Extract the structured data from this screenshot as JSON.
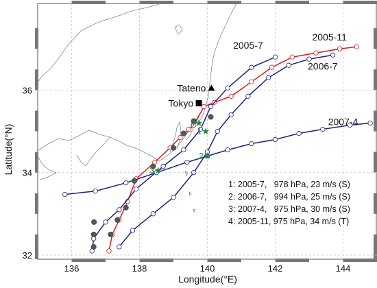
{
  "chart_data": {
    "type": "map",
    "xlabel": "Longitude(°E)",
    "ylabel": "Latitude(°N)",
    "xlim": [
      135,
      145
    ],
    "ylim": [
      31.9,
      38.1
    ],
    "x_ticks": [
      {
        "v": 136,
        "label": "136"
      },
      {
        "v": 138,
        "label": "138"
      },
      {
        "v": 140,
        "label": "140"
      },
      {
        "v": 142,
        "label": "142"
      },
      {
        "v": 144,
        "label": "144"
      }
    ],
    "y_ticks": [
      {
        "v": 32,
        "label": "32"
      },
      {
        "v": 34,
        "label": "34"
      },
      {
        "v": 36,
        "label": "36"
      }
    ],
    "colors": {
      "track_red": "#e0191f",
      "track_blue": "#1c1f86",
      "marker_gray": "#555555",
      "event_green": "#1d8a3a",
      "coast": "#888888",
      "grid": "#c8c8c8"
    },
    "tracks": [
      {
        "label": "2005-11",
        "color": "#e0191f",
        "label_lon": 143.6,
        "label_lat": 37.2,
        "points": [
          [
            137.1,
            32.1
          ],
          [
            137.2,
            32.5
          ],
          [
            137.4,
            32.85
          ],
          [
            137.65,
            33.3
          ],
          [
            137.9,
            33.85
          ],
          [
            138.45,
            34.25
          ],
          [
            138.9,
            34.6
          ],
          [
            139.2,
            34.85
          ],
          [
            139.45,
            35.05
          ],
          [
            139.6,
            35.15
          ],
          [
            139.9,
            35.6
          ],
          [
            140.2,
            35.7
          ],
          [
            140.7,
            35.85
          ],
          [
            141.3,
            36.2
          ],
          [
            141.9,
            36.55
          ],
          [
            142.5,
            36.8
          ],
          [
            143.2,
            36.9
          ],
          [
            143.9,
            37.0
          ],
          [
            144.4,
            37.05
          ]
        ]
      },
      {
        "label": "2005-7",
        "color": "#1c1f86",
        "label_lon": 141.2,
        "label_lat": 37.0,
        "points": [
          [
            136.6,
            32.1
          ],
          [
            136.65,
            32.4
          ],
          [
            137.0,
            32.8
          ],
          [
            137.4,
            33.1
          ],
          [
            137.9,
            33.6
          ],
          [
            138.7,
            34.15
          ],
          [
            139.3,
            34.55
          ],
          [
            139.8,
            35.05
          ],
          [
            140.1,
            35.6
          ],
          [
            140.6,
            36.05
          ],
          [
            141.3,
            36.55
          ],
          [
            142.0,
            36.8
          ]
        ]
      },
      {
        "label": "2006-7",
        "color": "#1c1f86",
        "label_lon": 143.4,
        "label_lat": 36.5,
        "points": [
          [
            137.4,
            32.2
          ],
          [
            137.8,
            32.6
          ],
          [
            138.4,
            33.0
          ],
          [
            139.0,
            33.4
          ],
          [
            139.6,
            34.0
          ],
          [
            140.0,
            34.5
          ],
          [
            140.3,
            35.0
          ],
          [
            140.7,
            35.4
          ],
          [
            141.2,
            35.85
          ],
          [
            141.8,
            36.3
          ],
          [
            142.4,
            36.6
          ],
          [
            143.0,
            36.75
          ],
          [
            143.7,
            36.85
          ]
        ]
      },
      {
        "label": "2007-4",
        "color": "#1c1f86",
        "label_lon": 144.0,
        "label_lat": 35.15,
        "points": [
          [
            135.8,
            33.47
          ],
          [
            136.7,
            33.55
          ],
          [
            137.6,
            33.75
          ],
          [
            138.5,
            34.0
          ],
          [
            139.4,
            34.25
          ],
          [
            140.0,
            34.4
          ],
          [
            140.6,
            34.55
          ],
          [
            141.3,
            34.7
          ],
          [
            142.0,
            34.8
          ],
          [
            142.7,
            34.95
          ],
          [
            143.4,
            35.05
          ],
          [
            144.2,
            35.15
          ],
          [
            144.8,
            35.2
          ]
        ]
      }
    ],
    "gray_markers": [
      [
        136.65,
        32.2
      ],
      [
        136.65,
        32.5
      ],
      [
        136.66,
        32.8
      ],
      [
        137.15,
        32.5
      ],
      [
        137.35,
        32.85
      ],
      [
        137.6,
        33.15
      ],
      [
        137.85,
        33.8
      ],
      [
        138.4,
        34.15
      ],
      [
        139.0,
        34.6
      ],
      [
        139.3,
        34.95
      ],
      [
        139.6,
        35.25
      ],
      [
        140.1,
        35.35
      ]
    ],
    "events": [
      {
        "num": "1",
        "lon": 139.95,
        "lat": 35.0
      },
      {
        "num": "2",
        "lon": 140.0,
        "lat": 34.4
      },
      {
        "num": "3",
        "lon": 138.55,
        "lat": 34.05
      },
      {
        "num": "4",
        "lon": 139.75,
        "lat": 35.2
      }
    ],
    "places": [
      {
        "name": "Tateno",
        "symbol": "triangle",
        "lon": 140.12,
        "lat": 36.05
      },
      {
        "name": "Tokyo",
        "symbol": "square",
        "lon": 139.75,
        "lat": 35.68
      }
    ],
    "legend_lines": [
      "1: 2005-7,   978 hPa, 23 m/s (S)",
      "2: 2006-7,   994 hPa, 25 m/s (S)",
      "3: 2007-4,   975 hPa, 30 m/s (S)",
      "4: 2005-11, 975 hPa, 34 m/s (T)"
    ],
    "legend_position": "bottom-right",
    "grid": true
  }
}
